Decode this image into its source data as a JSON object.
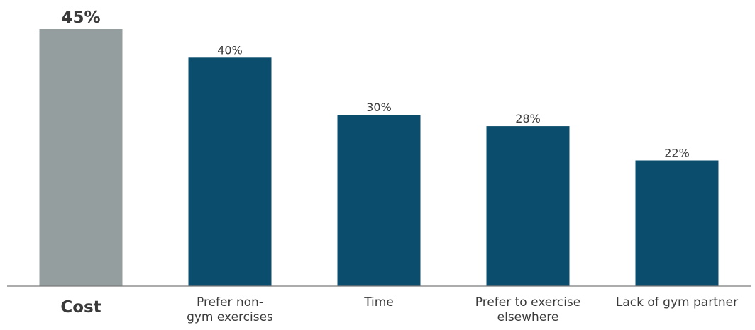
{
  "chart_data": {
    "type": "bar",
    "categories": [
      "Cost",
      "Prefer non-\ngym exercises",
      "Time",
      "Prefer to exercise\nelsewhere",
      "Lack of gym partner"
    ],
    "values": [
      45,
      40,
      30,
      28,
      22
    ],
    "data_labels": [
      "45%",
      "40%",
      "30%",
      "28%",
      "22%"
    ],
    "highlight_index": 0,
    "title": "",
    "xlabel": "",
    "ylabel": "",
    "ylim": [
      0,
      45
    ],
    "grid": false,
    "legend": "none",
    "colors": {
      "highlight": "#949e9e",
      "bar": "#0a4d6c",
      "axis": "#7a7a7a",
      "label": "#3b3b3b"
    }
  }
}
